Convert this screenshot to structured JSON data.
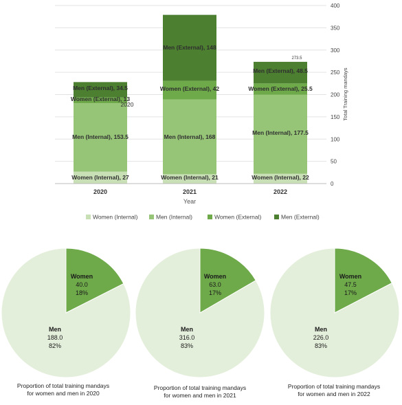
{
  "chart_data": [
    {
      "type": "bar",
      "stacked": true,
      "categories": [
        "2020",
        "2021",
        "2022"
      ],
      "xlabel": "Year",
      "ylabel": "Total Training mandays",
      "ylim": [
        0,
        400
      ],
      "yticks": [
        0,
        50,
        100,
        150,
        200,
        250,
        300,
        350,
        400
      ],
      "ytick_labels": [
        "0",
        "50",
        "100",
        "150",
        "200",
        "250",
        "300",
        "350",
        "400"
      ],
      "grid": true,
      "legend_position": "bottom",
      "series": [
        {
          "name": "Women (Internal)",
          "color": "#c9dfb6",
          "values": [
            27,
            21,
            22
          ],
          "labels": [
            "Women (Internal), 27",
            "Women (Internal), 21",
            "Women (Internal), 22"
          ]
        },
        {
          "name": "Men (Internal)",
          "color": "#97c578",
          "values": [
            153.5,
            168,
            177.5
          ],
          "labels": [
            "Men (Internal), 153.5",
            "Men (Internal), 168",
            "Men (Internal), 177.5"
          ]
        },
        {
          "name": "Women (External)",
          "color": "#6ea94a",
          "values": [
            13,
            42,
            25.5
          ],
          "labels": [
            "Women (External), 13",
            "Women (External), 42",
            "Women (External), 25.5"
          ]
        },
        {
          "name": "Men (External)",
          "color": "#4c7f30",
          "values": [
            34.5,
            148,
            48.5
          ],
          "labels": [
            "Men (External), 34.5",
            "Men (External), 148",
            "Men (External), 48.5"
          ]
        }
      ],
      "annotations": [
        {
          "category": "2020",
          "text": "2020"
        },
        {
          "category": "2022",
          "text": "273.5"
        }
      ]
    },
    {
      "type": "pie",
      "slices": [
        {
          "label": "Women",
          "value_text": "40.0",
          "percent_text": "18%",
          "value": 40.0,
          "color": "#6ea94a",
          "text_color": "#1a1a1a"
        },
        {
          "label": "Men",
          "value_text": "188.0",
          "percent_text": "82%",
          "value": 188.0,
          "color": "#e4efdb",
          "text_color": "#1a1a1a"
        }
      ],
      "caption": [
        "Proportion of total training mandays",
        "for women  and  men in 2020"
      ]
    },
    {
      "type": "pie",
      "slices": [
        {
          "label": "Women",
          "value_text": "63.0",
          "percent_text": "17%",
          "value": 63.0,
          "color": "#6ea94a",
          "text_color": "#1a1a1a"
        },
        {
          "label": "Men",
          "value_text": "316.0",
          "percent_text": "83%",
          "value": 316.0,
          "color": "#e4efdb",
          "text_color": "#1a1a1a"
        }
      ],
      "caption": [
        "Proportion of total training mandays",
        "for women  and  men in 2021"
      ]
    },
    {
      "type": "pie",
      "slices": [
        {
          "label": "Women",
          "value_text": "47.5",
          "percent_text": "17%",
          "value": 47.5,
          "color": "#6ea94a",
          "text_color": "#1a1a1a"
        },
        {
          "label": "Men",
          "value_text": "226.0",
          "percent_text": "83%",
          "value": 226.0,
          "color": "#e4efdb",
          "text_color": "#1a1a1a"
        }
      ],
      "caption": [
        "Proportion of total training mandays",
        "for women  and  men in 2022"
      ]
    }
  ]
}
